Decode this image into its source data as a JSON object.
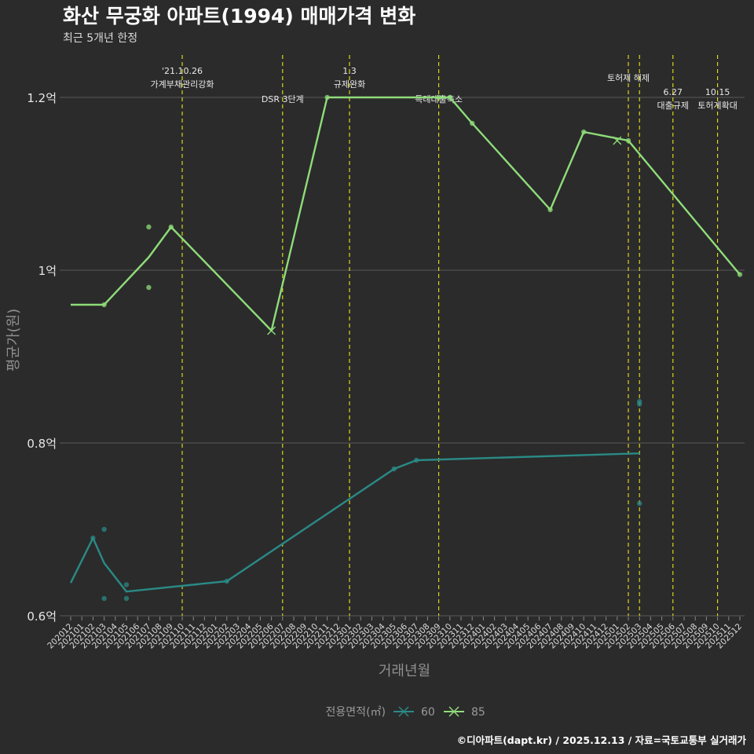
{
  "title": "화산 무궁화 아파트(1994) 매매가격 변화",
  "subtitle": "최근 5개년 한정",
  "caption": "©디아파트(dapt.kr) / 2025.12.13 / 자료=국토교통부 실거래가",
  "colors": {
    "background": "#2b2b2b",
    "series60": "#2a8a86",
    "series85": "#8fdc7a",
    "eventLine": "#e6e619",
    "grid": "#5a5a5a"
  },
  "chart_data": {
    "type": "line",
    "title": "화산 무궁화 아파트(1994) 매매가격 변화",
    "xlabel": "거래년월",
    "ylabel": "평균가(원)",
    "ylim": [
      0.6,
      1.2
    ],
    "ytick_labels": [
      "0.6억",
      "0.8억",
      "1억",
      "1.2억"
    ],
    "yticks": [
      0.6,
      0.8,
      1.0,
      1.2
    ],
    "categories": [
      "202012",
      "202101",
      "202102",
      "202103",
      "202104",
      "202105",
      "202106",
      "202107",
      "202108",
      "202109",
      "202110",
      "202111",
      "202112",
      "202201",
      "202202",
      "202203",
      "202204",
      "202205",
      "202206",
      "202207",
      "202208",
      "202209",
      "202210",
      "202211",
      "202212",
      "202301",
      "202302",
      "202303",
      "202304",
      "202305",
      "202306",
      "202307",
      "202308",
      "202309",
      "202310",
      "202311",
      "202312",
      "202401",
      "202402",
      "202403",
      "202404",
      "202405",
      "202406",
      "202407",
      "202408",
      "202409",
      "202410",
      "202411",
      "202412",
      "202501",
      "202502",
      "202503",
      "202504",
      "202505",
      "202506",
      "202507",
      "202508",
      "202509",
      "202510",
      "202511",
      "202512"
    ],
    "legend_title": "전용면적(㎡)",
    "series": [
      {
        "name": "60",
        "line": [
          [
            "202012",
            0.638
          ],
          [
            "202102",
            0.69
          ],
          [
            "202103",
            0.661
          ],
          [
            "202105",
            0.628
          ],
          [
            "202202",
            0.64
          ],
          [
            "202305",
            0.77
          ],
          [
            "202307",
            0.78
          ],
          [
            "202503",
            0.788
          ]
        ],
        "points": [
          [
            "202102",
            0.69
          ],
          [
            "202103",
            0.7
          ],
          [
            "202103",
            0.62
          ],
          [
            "202105",
            0.636
          ],
          [
            "202105",
            0.62
          ],
          [
            "202202",
            0.64
          ],
          [
            "202305",
            0.77
          ],
          [
            "202307",
            0.78
          ],
          [
            "202503",
            0.848
          ],
          [
            "202503",
            0.845
          ],
          [
            "202503",
            0.73
          ]
        ]
      },
      {
        "name": "85",
        "line": [
          [
            "202012",
            0.96
          ],
          [
            "202103",
            0.96
          ],
          [
            "202107",
            1.015
          ],
          [
            "202109",
            1.05
          ],
          [
            "202206",
            0.93
          ],
          [
            "202211",
            1.2
          ],
          [
            "202310",
            1.2
          ],
          [
            "202312",
            1.17
          ],
          [
            "202407",
            1.07
          ],
          [
            "202410",
            1.16
          ],
          [
            "202502",
            1.15
          ],
          [
            "202512",
            0.995
          ]
        ],
        "points": [
          [
            "202103",
            0.96
          ],
          [
            "202107",
            1.05
          ],
          [
            "202107",
            0.98
          ],
          [
            "202109",
            1.05
          ],
          [
            "202211",
            1.2
          ],
          [
            "202309",
            1.2
          ],
          [
            "202310",
            1.2
          ],
          [
            "202312",
            1.17
          ],
          [
            "202407",
            1.07
          ],
          [
            "202410",
            1.16
          ],
          [
            "202502",
            1.15
          ],
          [
            "202512",
            0.995
          ]
        ],
        "cross_points": [
          [
            "202206",
            0.93
          ],
          [
            "202501",
            1.15
          ]
        ]
      }
    ],
    "events": [
      {
        "x": 10.0,
        "lines": [
          "'21.10.26",
          "가계부채관리강화"
        ],
        "row": "top"
      },
      {
        "x": 19.0,
        "lines": [
          "DSR 3단계"
        ],
        "row": "low"
      },
      {
        "x": 25.0,
        "lines": [
          "1.3",
          "규제완화"
        ],
        "row": "top"
      },
      {
        "x": 33.0,
        "lines": [
          "특례대출축소"
        ],
        "row": "low"
      },
      {
        "x": 50.0,
        "lines": [
          "토허제 해제"
        ],
        "row": "mid"
      },
      {
        "x": 51.0,
        "lines": [],
        "row": "mid"
      },
      {
        "x": 54.0,
        "lines": [
          "6.27",
          "대출규제"
        ],
        "row": "lowpair"
      },
      {
        "x": 58.0,
        "lines": [
          "10.15",
          "토허계확대"
        ],
        "row": "lowpair"
      }
    ]
  }
}
